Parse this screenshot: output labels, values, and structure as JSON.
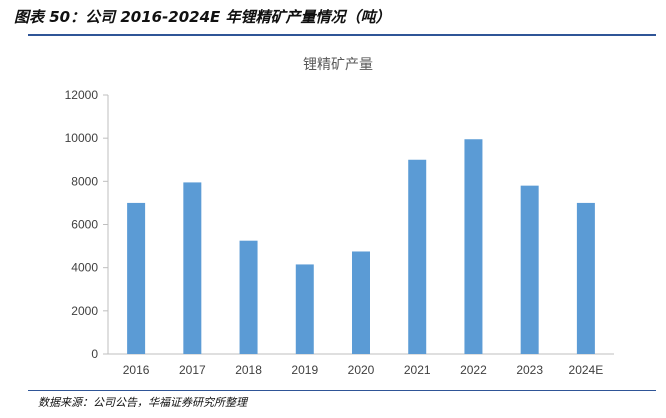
{
  "figure": {
    "title": "图表 50：公司 2016-2024E 年锂精矿产量情况（吨）",
    "source": "数据来源：公司公告，华福证券研究所整理"
  },
  "colors": {
    "bar": "#5b9bd5",
    "axis": "#bfbfbf",
    "rule": "#2f5597"
  },
  "chart_data": {
    "type": "bar",
    "title": "锂精矿产量",
    "xlabel": "",
    "ylabel": "",
    "categories": [
      "2016",
      "2017",
      "2018",
      "2019",
      "2020",
      "2021",
      "2022",
      "2023",
      "2024E"
    ],
    "values": [
      7000,
      7950,
      5250,
      4150,
      4750,
      9000,
      9950,
      7800,
      7000
    ],
    "ylim": [
      0,
      12000
    ],
    "yticks": [
      0,
      2000,
      4000,
      6000,
      8000,
      10000,
      12000
    ],
    "grid": false,
    "legend": "none"
  }
}
